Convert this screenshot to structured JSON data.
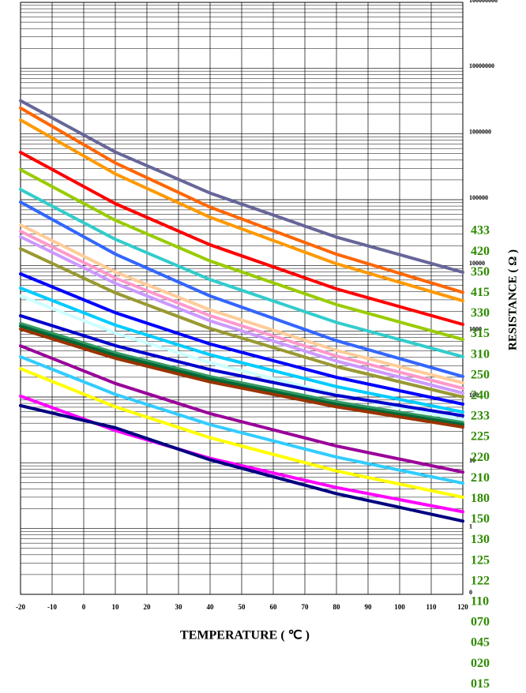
{
  "chart_data": {
    "type": "line",
    "x_label": "TEMPERATURE ( ℃ )",
    "y_label": "RESISTANCE ( Ω )",
    "x": [
      -20,
      10,
      40,
      80,
      120
    ],
    "xlim": [
      -20,
      120
    ],
    "xticks": [
      -20,
      -10,
      0,
      10,
      20,
      30,
      40,
      50,
      60,
      70,
      80,
      90,
      100,
      110,
      120
    ],
    "ylim": [
      0.1,
      100000000
    ],
    "yticks": [
      {
        "value": 0.1,
        "label": "0"
      },
      1,
      10,
      100,
      1000,
      10000,
      100000,
      1000000,
      10000000,
      100000000
    ],
    "log_y": true,
    "grid": true,
    "legend": "right",
    "series": [
      {
        "name": "433",
        "color": "#666699",
        "values": [
          3200000,
          530000,
          126000,
          27000,
          7900
        ]
      },
      {
        "name": "420",
        "color": "#ff6600",
        "values": [
          2470000,
          362000,
          77000,
          14800,
          3900
        ]
      },
      {
        "name": "350",
        "color": "#ff9900",
        "values": [
          1630000,
          247000,
          54000,
          10600,
          2900
        ]
      },
      {
        "name": "415",
        "color": "#ff0000",
        "values": [
          525000,
          87000,
          20600,
          4400,
          1270
        ]
      },
      {
        "name": "330",
        "color": "#99cc00",
        "values": [
          286000,
          48600,
          11700,
          2540,
          750
        ]
      },
      {
        "name": "315",
        "color": "#33cccc",
        "values": [
          143000,
          25000,
          6100,
          1360,
          410
        ]
      },
      {
        "name": "310",
        "color": "#3366ff",
        "values": [
          92000,
          14900,
          3440,
          720,
          205
        ]
      },
      {
        "name": "250",
        "color": "#ffcc99",
        "values": [
          41300,
          7960,
          2110,
          510,
          164
        ]
      },
      {
        "name": "240",
        "color": "#ff99cc",
        "values": [
          33100,
          6430,
          1720,
          420,
          136
        ]
      },
      {
        "name": "233",
        "color": "#cc99ff",
        "values": [
          27300,
          5350,
          1440,
          352,
          115
        ]
      },
      {
        "name": "225",
        "color": "#999933",
        "values": [
          18000,
          3840,
          1100,
          290,
          100
        ]
      },
      {
        "name": "220",
        "color": "#0000ff",
        "values": [
          7450,
          1910,
          640,
          199,
          78
        ]
      },
      {
        "name": "210",
        "color": "#00ccff",
        "values": [
          4530,
          1240,
          439,
          144,
          59
        ]
      },
      {
        "name": "180",
        "color": "#ccffff",
        "values": [
          3440,
          940,
          333,
          109,
          45
        ]
      },
      {
        "name": "150",
        "color": "#0000cc",
        "values": [
          1720,
          605,
          261,
          106,
          52
        ]
      },
      {
        "name": "130",
        "color": "#339966",
        "values": [
          1310,
          467,
          204,
          84,
          41
        ]
      },
      {
        "name": "125",
        "color": "#006633",
        "values": [
          1200,
          430,
          188,
          77,
          38
        ]
      },
      {
        "name": "122",
        "color": "#993300",
        "values": [
          1080,
          388,
          170,
          71,
          35
        ]
      },
      {
        "name": "110",
        "color": "#990099",
        "values": [
          600,
          161,
          56,
          18,
          7.2
        ]
      },
      {
        "name": "070",
        "color": "#33ccff",
        "values": [
          409,
          110,
          38,
          12.2,
          4.9
        ]
      },
      {
        "name": "045",
        "color": "#ffff00",
        "values": [
          270,
          71,
          24,
          7.5,
          3
        ]
      },
      {
        "name": "020",
        "color": "#ff00ff",
        "values": [
          103,
          31,
          11.7,
          4.2,
          1.8
        ]
      },
      {
        "name": "015",
        "color": "#000080",
        "values": [
          74,
          34,
          11.1,
          3.4,
          1.3
        ]
      }
    ]
  }
}
